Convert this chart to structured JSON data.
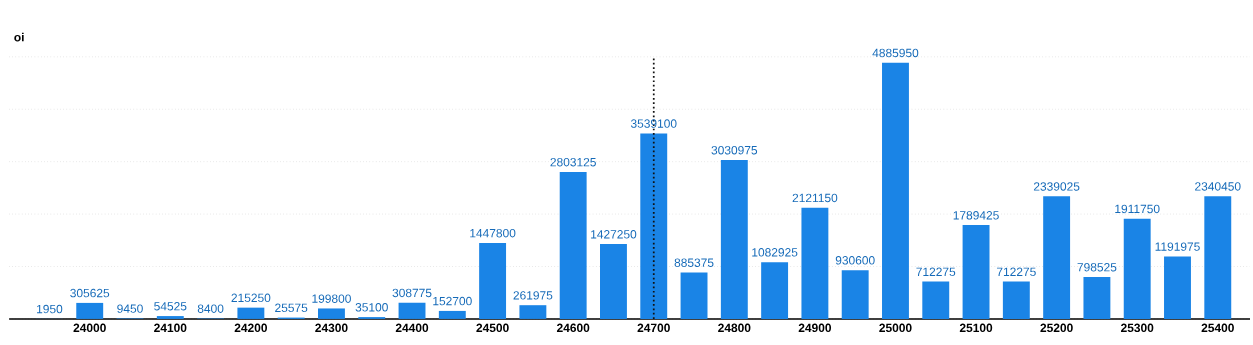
{
  "chart_data": {
    "type": "bar",
    "ylabel": "oi",
    "x": [
      23950,
      24000,
      24050,
      24100,
      24150,
      24200,
      24250,
      24300,
      24350,
      24400,
      24450,
      24500,
      24550,
      24600,
      24650,
      24700,
      24750,
      24800,
      24850,
      24900,
      24950,
      25000,
      25050,
      25100,
      25150,
      25200,
      25250,
      25300,
      25350,
      25400
    ],
    "values": [
      1950,
      305625,
      9450,
      54525,
      8400,
      215250,
      25575,
      199800,
      35100,
      308775,
      152700,
      1447800,
      261975,
      2803125,
      1427250,
      3539100,
      885375,
      3030975,
      1082925,
      2121150,
      930600,
      4885950,
      712275,
      1789425,
      712275,
      2339025,
      798525,
      1911750,
      1191975,
      2340450
    ],
    "color": "#1a84e6",
    "data_labels": true,
    "xlim": [
      23900,
      25440
    ],
    "xticks": [
      24000,
      24100,
      24200,
      24300,
      24400,
      24500,
      24600,
      24700,
      24800,
      24900,
      25000,
      25100,
      25200,
      25300,
      25400
    ],
    "ylim": [
      0,
      5000000
    ],
    "yticks": [
      {
        "value": 0,
        "label": null
      },
      {
        "value": 1000000,
        "label": null
      },
      {
        "value": 2000000,
        "label": null
      },
      {
        "value": 3000000,
        "label": null
      },
      {
        "value": 4000000,
        "label": null
      },
      {
        "value": 5000000,
        "label": null
      }
    ],
    "grid": "y",
    "tick_labels": "x",
    "ref_lines": [
      {
        "axis": "x",
        "value": 24700,
        "line_style": "dotted",
        "color": "#111111"
      }
    ]
  }
}
